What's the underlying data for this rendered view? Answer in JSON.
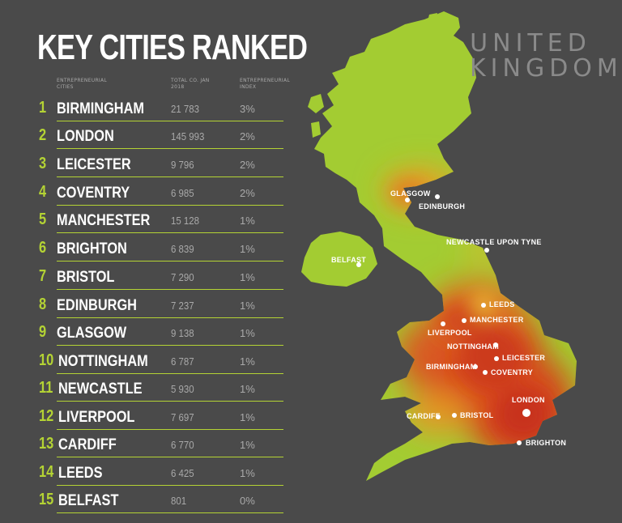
{
  "title": "KEY CITIES RANKED",
  "country_line1": "UNITED",
  "country_line2": "KINGDOM",
  "columns": {
    "city": "ENTREPRENEURIAL CITIES",
    "count": "TOTAL CO. JAN 2018",
    "index": "ENTREPRENEURIAL INDEX"
  },
  "colors": {
    "accent": "#b4d334",
    "land": "#a3cc32",
    "hot": "#d83a1c",
    "background": "#4a4a4a"
  },
  "rankings": [
    {
      "rank": "1",
      "city": "BIRMINGHAM",
      "count": "21 783",
      "index": "3%"
    },
    {
      "rank": "2",
      "city": "LONDON",
      "count": "145 993",
      "index": "2%"
    },
    {
      "rank": "3",
      "city": "LEICESTER",
      "count": "9 796",
      "index": "2%"
    },
    {
      "rank": "4",
      "city": "COVENTRY",
      "count": "6 985",
      "index": "2%"
    },
    {
      "rank": "5",
      "city": "MANCHESTER",
      "count": "15 128",
      "index": "1%"
    },
    {
      "rank": "6",
      "city": "BRIGHTON",
      "count": "6 839",
      "index": "1%"
    },
    {
      "rank": "7",
      "city": "BRISTOL",
      "count": "7 290",
      "index": "1%"
    },
    {
      "rank": "8",
      "city": "EDINBURGH",
      "count": "7 237",
      "index": "1%"
    },
    {
      "rank": "9",
      "city": "GLASGOW",
      "count": "9 138",
      "index": "1%"
    },
    {
      "rank": "10",
      "city": "NOTTINGHAM",
      "count": "6 787",
      "index": "1%"
    },
    {
      "rank": "11",
      "city": "NEWCASTLE",
      "count": "5 930",
      "index": "1%"
    },
    {
      "rank": "12",
      "city": "LIVERPOOL",
      "count": "7 697",
      "index": "1%"
    },
    {
      "rank": "13",
      "city": "CARDIFF",
      "count": "6 770",
      "index": "1%"
    },
    {
      "rank": "14",
      "city": "LEEDS",
      "count": "6 425",
      "index": "1%"
    },
    {
      "rank": "15",
      "city": "BELFAST",
      "count": "801",
      "index": "0%"
    }
  ],
  "map_labels": {
    "glasgow": "GLASGOW",
    "edinburgh": "EDINBURGH",
    "newcastle": "NEWCASTLE UPON TYNE",
    "belfast": "BELFAST",
    "leeds": "LEEDS",
    "manchester": "MANCHESTER",
    "liverpool": "LIVERPOOL",
    "nottingham": "NOTTINGHAM",
    "leicester": "LEICESTER",
    "birmingham": "BIRMINGHAM",
    "coventry": "COVENTRY",
    "london": "LONDON",
    "cardiff": "CARDIFF",
    "bristol": "BRISTOL",
    "brighton": "BRIGHTON"
  }
}
